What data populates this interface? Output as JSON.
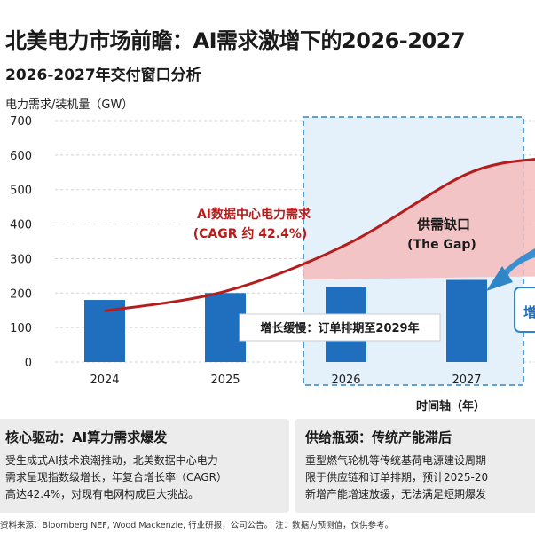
{
  "title": "北美电力市场前瞻：AI需求激增下的2026-2027",
  "subtitle": "2026-2027年交付窗口分析",
  "chart_data": {
    "type": "bar+line",
    "ylabel": "电力需求/装机量（GW）",
    "xlabel": "时间轴（年）",
    "ylim": [
      0,
      700
    ],
    "yticks": [
      "0",
      "100",
      "200",
      "300",
      "400",
      "500",
      "600",
      "700"
    ],
    "categories": [
      "2024",
      "2025",
      "2026",
      "2027"
    ],
    "series": [
      {
        "name": "装机量",
        "type": "bar",
        "values": [
          180,
          200,
          218,
          238
        ]
      },
      {
        "name": "AI数据中心电力需求",
        "type": "line",
        "x": [
          2024,
          2025,
          2026,
          2027,
          2027.6
        ],
        "values": [
          148,
          205,
          340,
          545,
          590
        ]
      }
    ],
    "annotations": {
      "demand_line_1": "AI数据中心电力需求",
      "demand_line_2": "(CAGR 约 42.4%)",
      "gap_1": "供需缺口",
      "gap_2": "(The Gap)",
      "slow_growth": "增长缓慢：订单排期至2029年",
      "right_edge": "增"
    },
    "colors": {
      "bar": "#1f6fbe",
      "line": "#b51c1c",
      "gap": "#f5b8b8",
      "window": "#2e86c8"
    }
  },
  "panels": {
    "left": {
      "title": "核心驱动：AI算力需求爆发",
      "lines": [
        "受生成式AI技术浪潮推动，北美数据中心电力",
        "需求呈现指数级增长，年复合增长率（CAGR）",
        "高达42.4%，对现有电网构成巨大挑战。"
      ]
    },
    "right": {
      "title": "供给瓶颈：传统产能滞后",
      "lines": [
        "重型燃气轮机等传统基荷电源建设周期",
        "限于供应链和订单排期，预计2025-20",
        "新增产能增速放缓，无法满足短期爆发"
      ]
    }
  },
  "source": "资料来源：Bloomberg NEF, Wood Mackenzie, 行业研报，公司公告。 注：数据为预测值，仅供参考。"
}
